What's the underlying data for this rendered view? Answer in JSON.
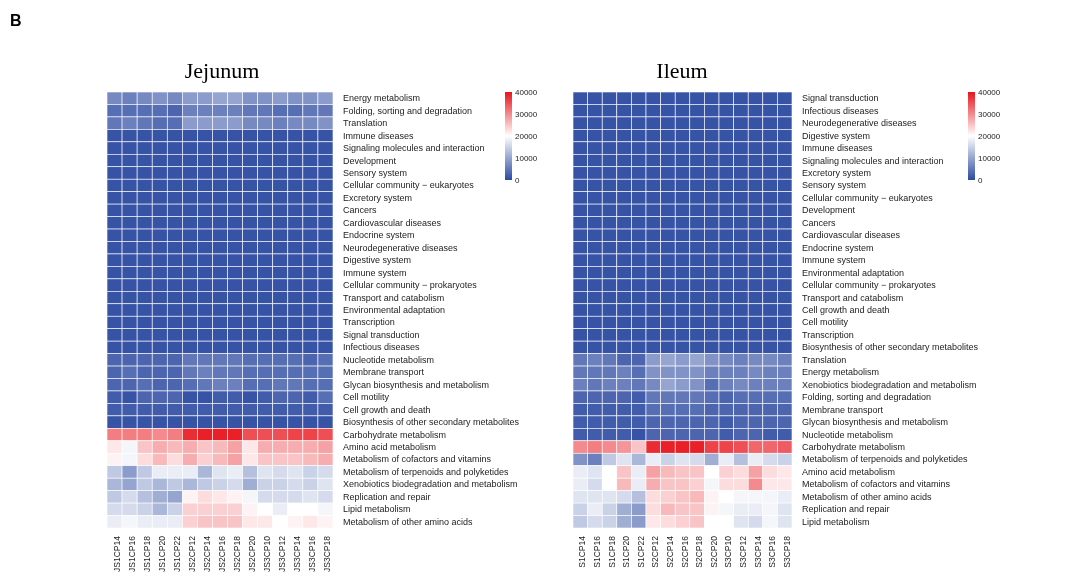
{
  "chart_data": [
    {
      "type": "heatmap",
      "title": "Jejunum",
      "annotations": [
        "B"
      ],
      "categories": [
        "JS1CP14",
        "JS1CP16",
        "JS1CP18",
        "JS1CP20",
        "JS1CP22",
        "JS2CP12",
        "JS2CP14",
        "JS2CP16",
        "JS2CP18",
        "JS2CP20",
        "JS3CP10",
        "JS3CP12",
        "JS3CP14",
        "JS3CP16",
        "JS3CP18"
      ],
      "y_categories": [
        "Energy metabolism",
        "Folding, sorting and degradation",
        "Translation",
        "Immune diseases",
        "Signaling molecules and interaction",
        "Development",
        "Sensory system",
        "Cellular community − eukaryotes",
        "Excretory system",
        "Cancers",
        "Cardiovascular diseases",
        "Endocrine system",
        "Neurodegenerative diseases",
        "Digestive system",
        "Immune system",
        "Cellular community − prokaryotes",
        "Transport and catabolism",
        "Environmental adaptation",
        "Transcription",
        "Signal transduction",
        "Infectious diseases",
        "Nucleotide metabolism",
        "Membrane transport",
        "Glycan biosynthesis and metabolism",
        "Cell motility",
        "Cell growth and death",
        "Biosynthesis of other secondary metabolites",
        "Carbohydrate metabolism",
        "Amino acid metabolism",
        "Metabolism of cofactors and vitamins",
        "Metabolism of terpenoids and polyketides",
        "Xenobiotics biodegradation and metabolism",
        "Replication and repair",
        "Lipid metabolism",
        "Metabolism of other amino acids"
      ],
      "cells": [
        [
          7000,
          6000,
          7000,
          8000,
          7000,
          9000,
          9000,
          10000,
          10000,
          8000,
          8000,
          9000,
          8000,
          8000,
          9000
        ],
        [
          4000,
          4000,
          4000,
          4000,
          3000,
          6000,
          6000,
          6000,
          6000,
          5000,
          5000,
          4000,
          4000,
          5000,
          5000
        ],
        [
          5000,
          6000,
          5000,
          4000,
          4000,
          9000,
          9000,
          9000,
          9000,
          7000,
          7000,
          6000,
          7000,
          7000,
          8000
        ],
        [
          1000,
          1000,
          1000,
          1000,
          1000,
          1000,
          1000,
          1000,
          1000,
          1000,
          1000,
          1000,
          1000,
          1000,
          1000
        ],
        [
          1000,
          1000,
          1000,
          1000,
          1000,
          1000,
          1000,
          1000,
          1000,
          1000,
          1000,
          1000,
          1000,
          1000,
          1000
        ],
        [
          1000,
          1000,
          1000,
          1000,
          1000,
          1000,
          1000,
          1000,
          1000,
          1000,
          1000,
          1000,
          1000,
          1000,
          1000
        ],
        [
          1000,
          1000,
          1000,
          1000,
          1000,
          1000,
          1000,
          1000,
          1000,
          1000,
          1000,
          1000,
          1000,
          1000,
          1000
        ],
        [
          1000,
          1000,
          1000,
          1000,
          1000,
          1000,
          1000,
          1000,
          1000,
          1000,
          1000,
          1000,
          1000,
          1000,
          1000
        ],
        [
          1000,
          1000,
          1000,
          1000,
          1000,
          1000,
          1000,
          1000,
          1000,
          1000,
          1000,
          1000,
          1000,
          1000,
          1000
        ],
        [
          1000,
          1000,
          1000,
          1000,
          1000,
          1000,
          1000,
          1000,
          1000,
          1000,
          1000,
          1000,
          1000,
          1000,
          1000
        ],
        [
          1000,
          1000,
          1000,
          1000,
          1000,
          1000,
          1000,
          1000,
          1000,
          1000,
          1000,
          1000,
          1000,
          1000,
          1000
        ],
        [
          1000,
          1000,
          1000,
          1000,
          1000,
          1000,
          1000,
          1000,
          1000,
          1000,
          1000,
          1000,
          1000,
          1000,
          1000
        ],
        [
          1000,
          1000,
          1000,
          1000,
          1000,
          1000,
          1000,
          1000,
          1000,
          1000,
          1000,
          1000,
          1000,
          1000,
          1000
        ],
        [
          1000,
          1000,
          1000,
          1000,
          1000,
          1000,
          1000,
          1000,
          1000,
          1000,
          1000,
          1000,
          1000,
          1000,
          1000
        ],
        [
          1000,
          1000,
          1000,
          1000,
          1000,
          1000,
          1000,
          1000,
          1000,
          1000,
          1000,
          1000,
          1000,
          1000,
          1000
        ],
        [
          1000,
          1000,
          1000,
          1000,
          1000,
          1000,
          1000,
          1000,
          1000,
          1000,
          1000,
          1000,
          1000,
          1000,
          1000
        ],
        [
          1000,
          1000,
          1000,
          1000,
          1000,
          1000,
          1000,
          1000,
          1000,
          1000,
          1000,
          1000,
          1000,
          1000,
          1000
        ],
        [
          1000,
          1000,
          1000,
          1000,
          1000,
          1000,
          1000,
          1000,
          1000,
          1000,
          1000,
          1000,
          1000,
          1000,
          1000
        ],
        [
          1000,
          1000,
          1000,
          1000,
          1000,
          1000,
          1000,
          1000,
          1000,
          1000,
          1000,
          1000,
          1000,
          1000,
          1000
        ],
        [
          1000,
          1000,
          1000,
          1000,
          1000,
          1000,
          1000,
          1000,
          1000,
          1000,
          1000,
          1000,
          1000,
          1000,
          1000
        ],
        [
          1000,
          1000,
          1000,
          1000,
          1000,
          1000,
          1000,
          1000,
          1000,
          1000,
          1000,
          1000,
          1000,
          1000,
          1000
        ],
        [
          3000,
          3000,
          3000,
          3000,
          3000,
          5000,
          5000,
          5000,
          5000,
          4000,
          4000,
          4000,
          4000,
          3000,
          4000
        ],
        [
          3000,
          4000,
          3000,
          3000,
          3000,
          5000,
          6000,
          5000,
          5000,
          4000,
          4000,
          4000,
          4000,
          4000,
          4000
        ],
        [
          3000,
          3000,
          4000,
          3000,
          3000,
          4000,
          5000,
          6000,
          6000,
          4000,
          4000,
          5000,
          5000,
          4000,
          4000
        ],
        [
          2000,
          1000,
          3000,
          3000,
          3000,
          1000,
          1000,
          2000,
          2000,
          1000,
          2000,
          3000,
          3000,
          2000,
          4000
        ],
        [
          2000,
          2000,
          2000,
          2000,
          2000,
          2000,
          2000,
          2000,
          2000,
          2000,
          2000,
          2000,
          2000,
          2000,
          2000
        ],
        [
          1000,
          1000,
          1000,
          1000,
          1000,
          1000,
          1000,
          1000,
          1000,
          1000,
          1000,
          1000,
          1000,
          1000,
          1000
        ],
        [
          31000,
          31000,
          31000,
          30000,
          31000,
          38000,
          39000,
          39000,
          39000,
          35000,
          35000,
          35000,
          36000,
          36000,
          35000
        ],
        [
          22000,
          19000,
          25000,
          27000,
          26000,
          27000,
          25000,
          26000,
          28000,
          22000,
          27000,
          27000,
          27000,
          27000,
          28000
        ],
        [
          21000,
          19000,
          23000,
          26000,
          23000,
          27000,
          24000,
          26000,
          28000,
          22000,
          25000,
          25000,
          25000,
          26000,
          27000
        ],
        [
          14000,
          9000,
          14000,
          18000,
          18000,
          18000,
          12000,
          17000,
          18000,
          13000,
          17000,
          16000,
          17000,
          15000,
          16000
        ],
        [
          12000,
          10000,
          14000,
          12000,
          14000,
          12000,
          14000,
          15000,
          16000,
          11000,
          15000,
          15000,
          16000,
          15000,
          17000
        ],
        [
          14000,
          16000,
          13000,
          11000,
          10000,
          21000,
          23000,
          22000,
          21000,
          19000,
          16000,
          16000,
          16000,
          17000,
          16000
        ],
        [
          16000,
          16000,
          15000,
          12000,
          15000,
          24000,
          24000,
          24000,
          24000,
          21000,
          20000,
          18000,
          20000,
          20000,
          19000
        ],
        [
          18000,
          19000,
          18000,
          18000,
          18000,
          24000,
          25000,
          25000,
          25000,
          22000,
          22000,
          20000,
          21000,
          22000,
          21000
        ]
      ],
      "clim": [
        0,
        40000
      ],
      "cticks": [
        0,
        10000,
        20000,
        30000,
        40000
      ]
    },
    {
      "type": "heatmap",
      "title": "Ileum",
      "categories": [
        "S1CP14",
        "S1CP16",
        "S1CP18",
        "S1CP20",
        "S1CP22",
        "S2CP12",
        "S2CP14",
        "S2CP16",
        "S2CP18",
        "S2CP20",
        "S3CP10",
        "S3CP12",
        "S3CP14",
        "S3CP16",
        "S3CP18"
      ],
      "y_categories": [
        "Signal transduction",
        "Infectious diseases",
        "Neurodegenerative diseases",
        "Digestive system",
        "Immune diseases",
        "Signaling molecules and interaction",
        "Excretory system",
        "Sensory system",
        "Cellular community − eukaryotes",
        "Development",
        "Cancers",
        "Cardiovascular diseases",
        "Endocrine system",
        "Immune system",
        "Environmental adaptation",
        "Cellular community − prokaryotes",
        "Transport and catabolism",
        "Cell growth and death",
        "Cell motility",
        "Transcription",
        "Biosynthesis of other secondary metabolites",
        "Translation",
        "Energy metabolism",
        "Xenobiotics biodegradation and metabolism",
        "Folding, sorting and degradation",
        "Membrane transport",
        "Glycan biosynthesis and metabolism",
        "Nucleotide metabolism",
        "Carbohydrate metabolism",
        "Metabolism of terpenoids and polyketides",
        "Amino acid metabolism",
        "Metabolism of cofactors and vitamins",
        "Metabolism of other amino acids",
        "Replication and repair",
        "Lipid metabolism"
      ],
      "cells": [
        [
          1000,
          1000,
          1000,
          1000,
          1000,
          1000,
          1000,
          1000,
          1000,
          1000,
          1000,
          1000,
          1000,
          1000,
          1000
        ],
        [
          1000,
          1000,
          1000,
          1000,
          1000,
          1000,
          1000,
          1000,
          1000,
          1000,
          1000,
          1000,
          1000,
          1000,
          1000
        ],
        [
          1000,
          1000,
          1000,
          1000,
          1000,
          1000,
          1000,
          1000,
          1000,
          1000,
          1000,
          1000,
          1000,
          1000,
          1000
        ],
        [
          1000,
          1000,
          1000,
          1000,
          1000,
          1000,
          1000,
          1000,
          1000,
          1000,
          1000,
          1000,
          1000,
          1000,
          1000
        ],
        [
          1000,
          1000,
          1000,
          1000,
          1000,
          1000,
          1000,
          1000,
          1000,
          1000,
          1000,
          1000,
          1000,
          1000,
          1000
        ],
        [
          1000,
          1000,
          1000,
          1000,
          1000,
          1000,
          1000,
          1000,
          1000,
          1000,
          1000,
          1000,
          1000,
          1000,
          1000
        ],
        [
          1000,
          1000,
          1000,
          1000,
          1000,
          1000,
          1000,
          1000,
          1000,
          1000,
          1000,
          1000,
          1000,
          1000,
          1000
        ],
        [
          1000,
          1000,
          1000,
          1000,
          1000,
          1000,
          1000,
          1000,
          1000,
          1000,
          1000,
          1000,
          1000,
          1000,
          1000
        ],
        [
          1000,
          1000,
          1000,
          1000,
          1000,
          1000,
          1000,
          1000,
          1000,
          1000,
          1000,
          1000,
          1000,
          1000,
          1000
        ],
        [
          1000,
          1000,
          1000,
          1000,
          1000,
          1000,
          1000,
          1000,
          1000,
          1000,
          1000,
          1000,
          1000,
          1000,
          1000
        ],
        [
          1000,
          1000,
          1000,
          1000,
          1000,
          1000,
          1000,
          1000,
          1000,
          1000,
          1000,
          1000,
          1000,
          1000,
          1000
        ],
        [
          1000,
          1000,
          1000,
          1000,
          1000,
          1000,
          1000,
          1000,
          1000,
          1000,
          1000,
          1000,
          1000,
          1000,
          1000
        ],
        [
          1000,
          1000,
          1000,
          1000,
          1000,
          1000,
          1000,
          1000,
          1000,
          1000,
          1000,
          1000,
          1000,
          1000,
          1000
        ],
        [
          1000,
          1000,
          1000,
          1000,
          1000,
          1000,
          1000,
          1000,
          1000,
          1000,
          1000,
          1000,
          1000,
          1000,
          1000
        ],
        [
          1000,
          1000,
          1000,
          1000,
          1000,
          1000,
          1000,
          1000,
          1000,
          1000,
          1000,
          1000,
          1000,
          1000,
          1000
        ],
        [
          1000,
          1000,
          1000,
          1000,
          1000,
          1000,
          1000,
          1000,
          1000,
          1000,
          1000,
          1000,
          1000,
          1000,
          1000
        ],
        [
          1000,
          1000,
          1000,
          1000,
          1000,
          1000,
          1000,
          1000,
          1000,
          1000,
          1000,
          1000,
          1000,
          1000,
          1000
        ],
        [
          1000,
          1000,
          1000,
          1000,
          1000,
          1000,
          1000,
          1000,
          1000,
          1000,
          1000,
          1000,
          1000,
          1000,
          1000
        ],
        [
          1000,
          1000,
          1000,
          1000,
          1000,
          1000,
          1000,
          1000,
          1000,
          1000,
          1000,
          1000,
          1000,
          1000,
          1000
        ],
        [
          1000,
          1000,
          1000,
          1000,
          1000,
          1000,
          1000,
          1000,
          1000,
          1000,
          1000,
          1000,
          1000,
          1000,
          1000
        ],
        [
          1000,
          1000,
          1000,
          1000,
          1000,
          1000,
          1000,
          1000,
          1000,
          1000,
          1000,
          1000,
          1000,
          1000,
          1000
        ],
        [
          5000,
          6000,
          5000,
          3000,
          3000,
          9000,
          10000,
          9000,
          10000,
          8000,
          7000,
          6000,
          7000,
          7000,
          6000
        ],
        [
          5000,
          5000,
          5000,
          6000,
          4000,
          8000,
          8000,
          8000,
          8000,
          6000,
          6000,
          6000,
          7000,
          6000,
          6000
        ],
        [
          6000,
          5000,
          6000,
          6000,
          5000,
          7000,
          10000,
          9000,
          8000,
          4000,
          6000,
          7000,
          6000,
          6000,
          6000
        ],
        [
          3000,
          3000,
          3000,
          3000,
          2000,
          5000,
          5000,
          5000,
          5000,
          4000,
          3000,
          4000,
          4000,
          4000,
          4000
        ],
        [
          2000,
          2000,
          2000,
          2000,
          2000,
          4000,
          4000,
          4000,
          4000,
          3000,
          3000,
          3000,
          3000,
          3000,
          3000
        ],
        [
          2000,
          2000,
          2000,
          2000,
          2000,
          3000,
          3000,
          3000,
          3000,
          3000,
          2000,
          3000,
          3000,
          3000,
          3000
        ],
        [
          2000,
          2000,
          2000,
          2000,
          1000,
          3000,
          3000,
          3000,
          3000,
          3000,
          2000,
          3000,
          3000,
          2000,
          2000
        ],
        [
          30000,
          31000,
          30000,
          29000,
          25000,
          38000,
          39000,
          39000,
          39000,
          36000,
          36000,
          35000,
          33000,
          33000,
          34000
        ],
        [
          8000,
          6000,
          14000,
          17000,
          12000,
          18000,
          15000,
          17000,
          16000,
          11000,
          18000,
          13000,
          18000,
          16000,
          15000
        ],
        [
          18000,
          17000,
          20000,
          25000,
          18000,
          28000,
          26000,
          25000,
          25000,
          20000,
          24000,
          23000,
          28000,
          23000,
          22000
        ],
        [
          18000,
          16000,
          20000,
          26000,
          18000,
          27000,
          25000,
          25000,
          24000,
          19000,
          23000,
          23000,
          30000,
          22000,
          22000
        ],
        [
          17000,
          17000,
          17000,
          16000,
          13000,
          23000,
          24000,
          25000,
          26000,
          21000,
          20000,
          19000,
          19000,
          19000,
          18000
        ],
        [
          15000,
          18000,
          15000,
          11000,
          9000,
          23000,
          26000,
          25000,
          25000,
          21000,
          19000,
          18000,
          18000,
          19000,
          17000
        ],
        [
          14000,
          16000,
          15000,
          11000,
          9000,
          22000,
          23000,
          24000,
          25000,
          20000,
          20000,
          17000,
          16000,
          19000,
          17000
        ]
      ],
      "clim": [
        0,
        40000
      ],
      "cticks": [
        0,
        10000,
        20000,
        30000,
        40000
      ]
    }
  ]
}
